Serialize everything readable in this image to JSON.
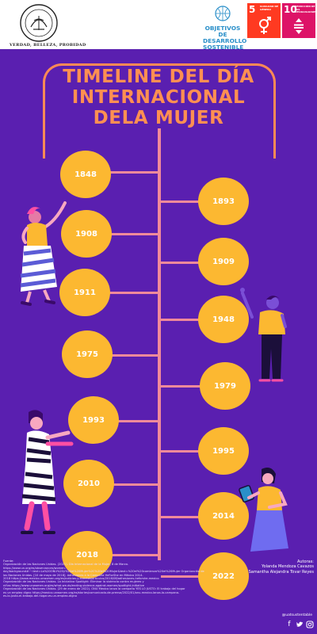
{
  "header": {
    "seal_motto": "VERDAD, BELLEZA, PROBIDAD",
    "sdg_logo_lines": [
      "OBJETIVOS",
      "DE DESARROLLO",
      "SOSTENIBLE"
    ],
    "goals": [
      {
        "number": "5",
        "text": "IGUALDAD DE GÉNERO",
        "color": "#ff3a21"
      },
      {
        "number": "10",
        "text": "REDUCCIÓN DE LAS DESIGUALDADES",
        "color": "#dd1367"
      }
    ]
  },
  "title": {
    "lines": [
      "TIMELINE DEL DÍA",
      "INTERNACIONAL",
      "DELA MUJER"
    ],
    "color": "#ff8f52"
  },
  "timeline": {
    "years": [
      "1848",
      "1893",
      "1908",
      "1909",
      "1911",
      "1948",
      "1975",
      "1979",
      "1993",
      "1995",
      "2010",
      "2014",
      "2018",
      "2022"
    ],
    "circle_color": "#fcb831",
    "line_color": "#f08a9a"
  },
  "footer": {
    "sources_label": "Fuente:",
    "sources": [
      "Organización de las Naciones Unidas. (2021). Día Internacional de la Mujer, 8 de Marzo.",
      "https://www.un.org/es/observances/women-",
      "day/background#:~:text=La%20ONU%20y%20el%20Mujer%2C%20el%20Mujer&text=%20el%20comienzo%20el%20Mujer Organización de",
      "las Naciones Unidas. [10 de mayo de 2018]. Adhesiones a la Campaña HeForShe en México 2014-",
      "2018 https://www.mexico.unwomen.org/es/noticias-y-eventos/articulos/2016/08/adhesiones-heforshe-mexico",
      "Organización de las Naciones Unidas. La Iniciativa Spotlight: Eliminar la violencia contra mujeres y",
      "niñas https://www.unwomen.org/es/what-we-do/ending-violence-against-women/spotlight-initiative",
      "Organización de las Naciones Unidas. (29 de enero de 2022). ONU Mexico lanza la campaña YES LO JUSTO: El trabajo del hogar",
      "es un empleo digno https://mexico.unwomen.org/es/stories/comunicado-de-prensa/2022/01/onu-mexico-lanza-la-campana-",
      "es-lo-justo-el-trabajo-del-hogar-es-un-empleo-digno"
    ],
    "authors_label": "Autoras:",
    "authors": [
      "Yolanda Mendoza Cavazos",
      "Samantha Alejandra Tovar Reyes"
    ],
    "handle": "@uatsustentable",
    "social_icons": [
      "facebook-icon",
      "twitter-icon",
      "instagram-icon"
    ]
  }
}
